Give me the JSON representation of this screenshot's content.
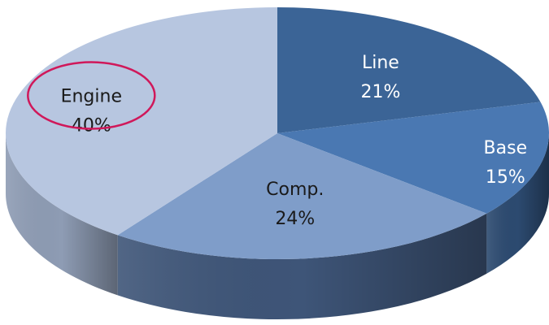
{
  "chart_data": {
    "type": "pie",
    "title": "",
    "slices": [
      {
        "label": "Line",
        "percent_label": "21%",
        "value": 21,
        "color": "#3b6496",
        "side_color": "#243e5e",
        "highlighted": false
      },
      {
        "label": "Base",
        "percent_label": "15%",
        "value": 15,
        "color": "#4a78b2",
        "side_color": "#2c4a70",
        "highlighted": false
      },
      {
        "label": "Comp.",
        "percent_label": "24%",
        "value": 24,
        "color": "#7f9dc9",
        "side_color": "#3e5578",
        "highlighted": false
      },
      {
        "label": "Engine",
        "percent_label": "40%",
        "value": 40,
        "color": "#b7c6e0",
        "side_color": "#8e9cb4",
        "highlighted": true
      }
    ],
    "highlight_color": "#d0185a",
    "label_text_colors": {
      "dark_slices": "#ffffff",
      "light_slices": "#1a1a1a"
    },
    "style": "3d-pie",
    "legend": "none"
  }
}
